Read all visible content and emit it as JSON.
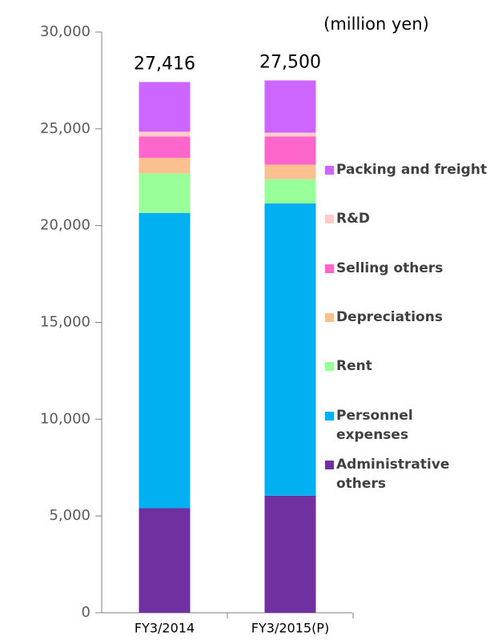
{
  "chart_data": {
    "type": "stacked_bar",
    "unit_label": "(million yen)",
    "categories": [
      "FY3/2014",
      "FY3/2015(P)"
    ],
    "series": [
      {
        "name": "Administrative others",
        "color": "#7030a0",
        "values": [
          5400,
          6050
        ]
      },
      {
        "name": "Personnel expenses",
        "color": "#00b0f0",
        "values": [
          15250,
          15100
        ]
      },
      {
        "name": "Rent",
        "color": "#99ff99",
        "values": [
          2050,
          1250
        ]
      },
      {
        "name": "Depreciations",
        "color": "#fac090",
        "values": [
          800,
          750
        ]
      },
      {
        "name": "Selling others",
        "color": "#ff66cc",
        "values": [
          1100,
          1450
        ]
      },
      {
        "name": "R&D",
        "color": "#ffcccc",
        "values": [
          250,
          200
        ]
      },
      {
        "name": "Packing and freight",
        "color": "#cc66ff",
        "values": [
          2566,
          2700
        ]
      }
    ],
    "totals": [
      27416,
      27500
    ],
    "total_labels": [
      "27,416",
      "27,500"
    ],
    "ylim": [
      0,
      30000
    ],
    "yticks": [
      0,
      {
        "value": 5000,
        "label": "5,000"
      },
      {
        "value": 10000,
        "label": "10,000"
      },
      {
        "value": 15000,
        "label": "15,000"
      },
      {
        "value": 20000,
        "label": "20,000"
      },
      {
        "value": 25000,
        "label": "25,000"
      },
      {
        "value": 30000,
        "label": "30,000"
      }
    ]
  }
}
